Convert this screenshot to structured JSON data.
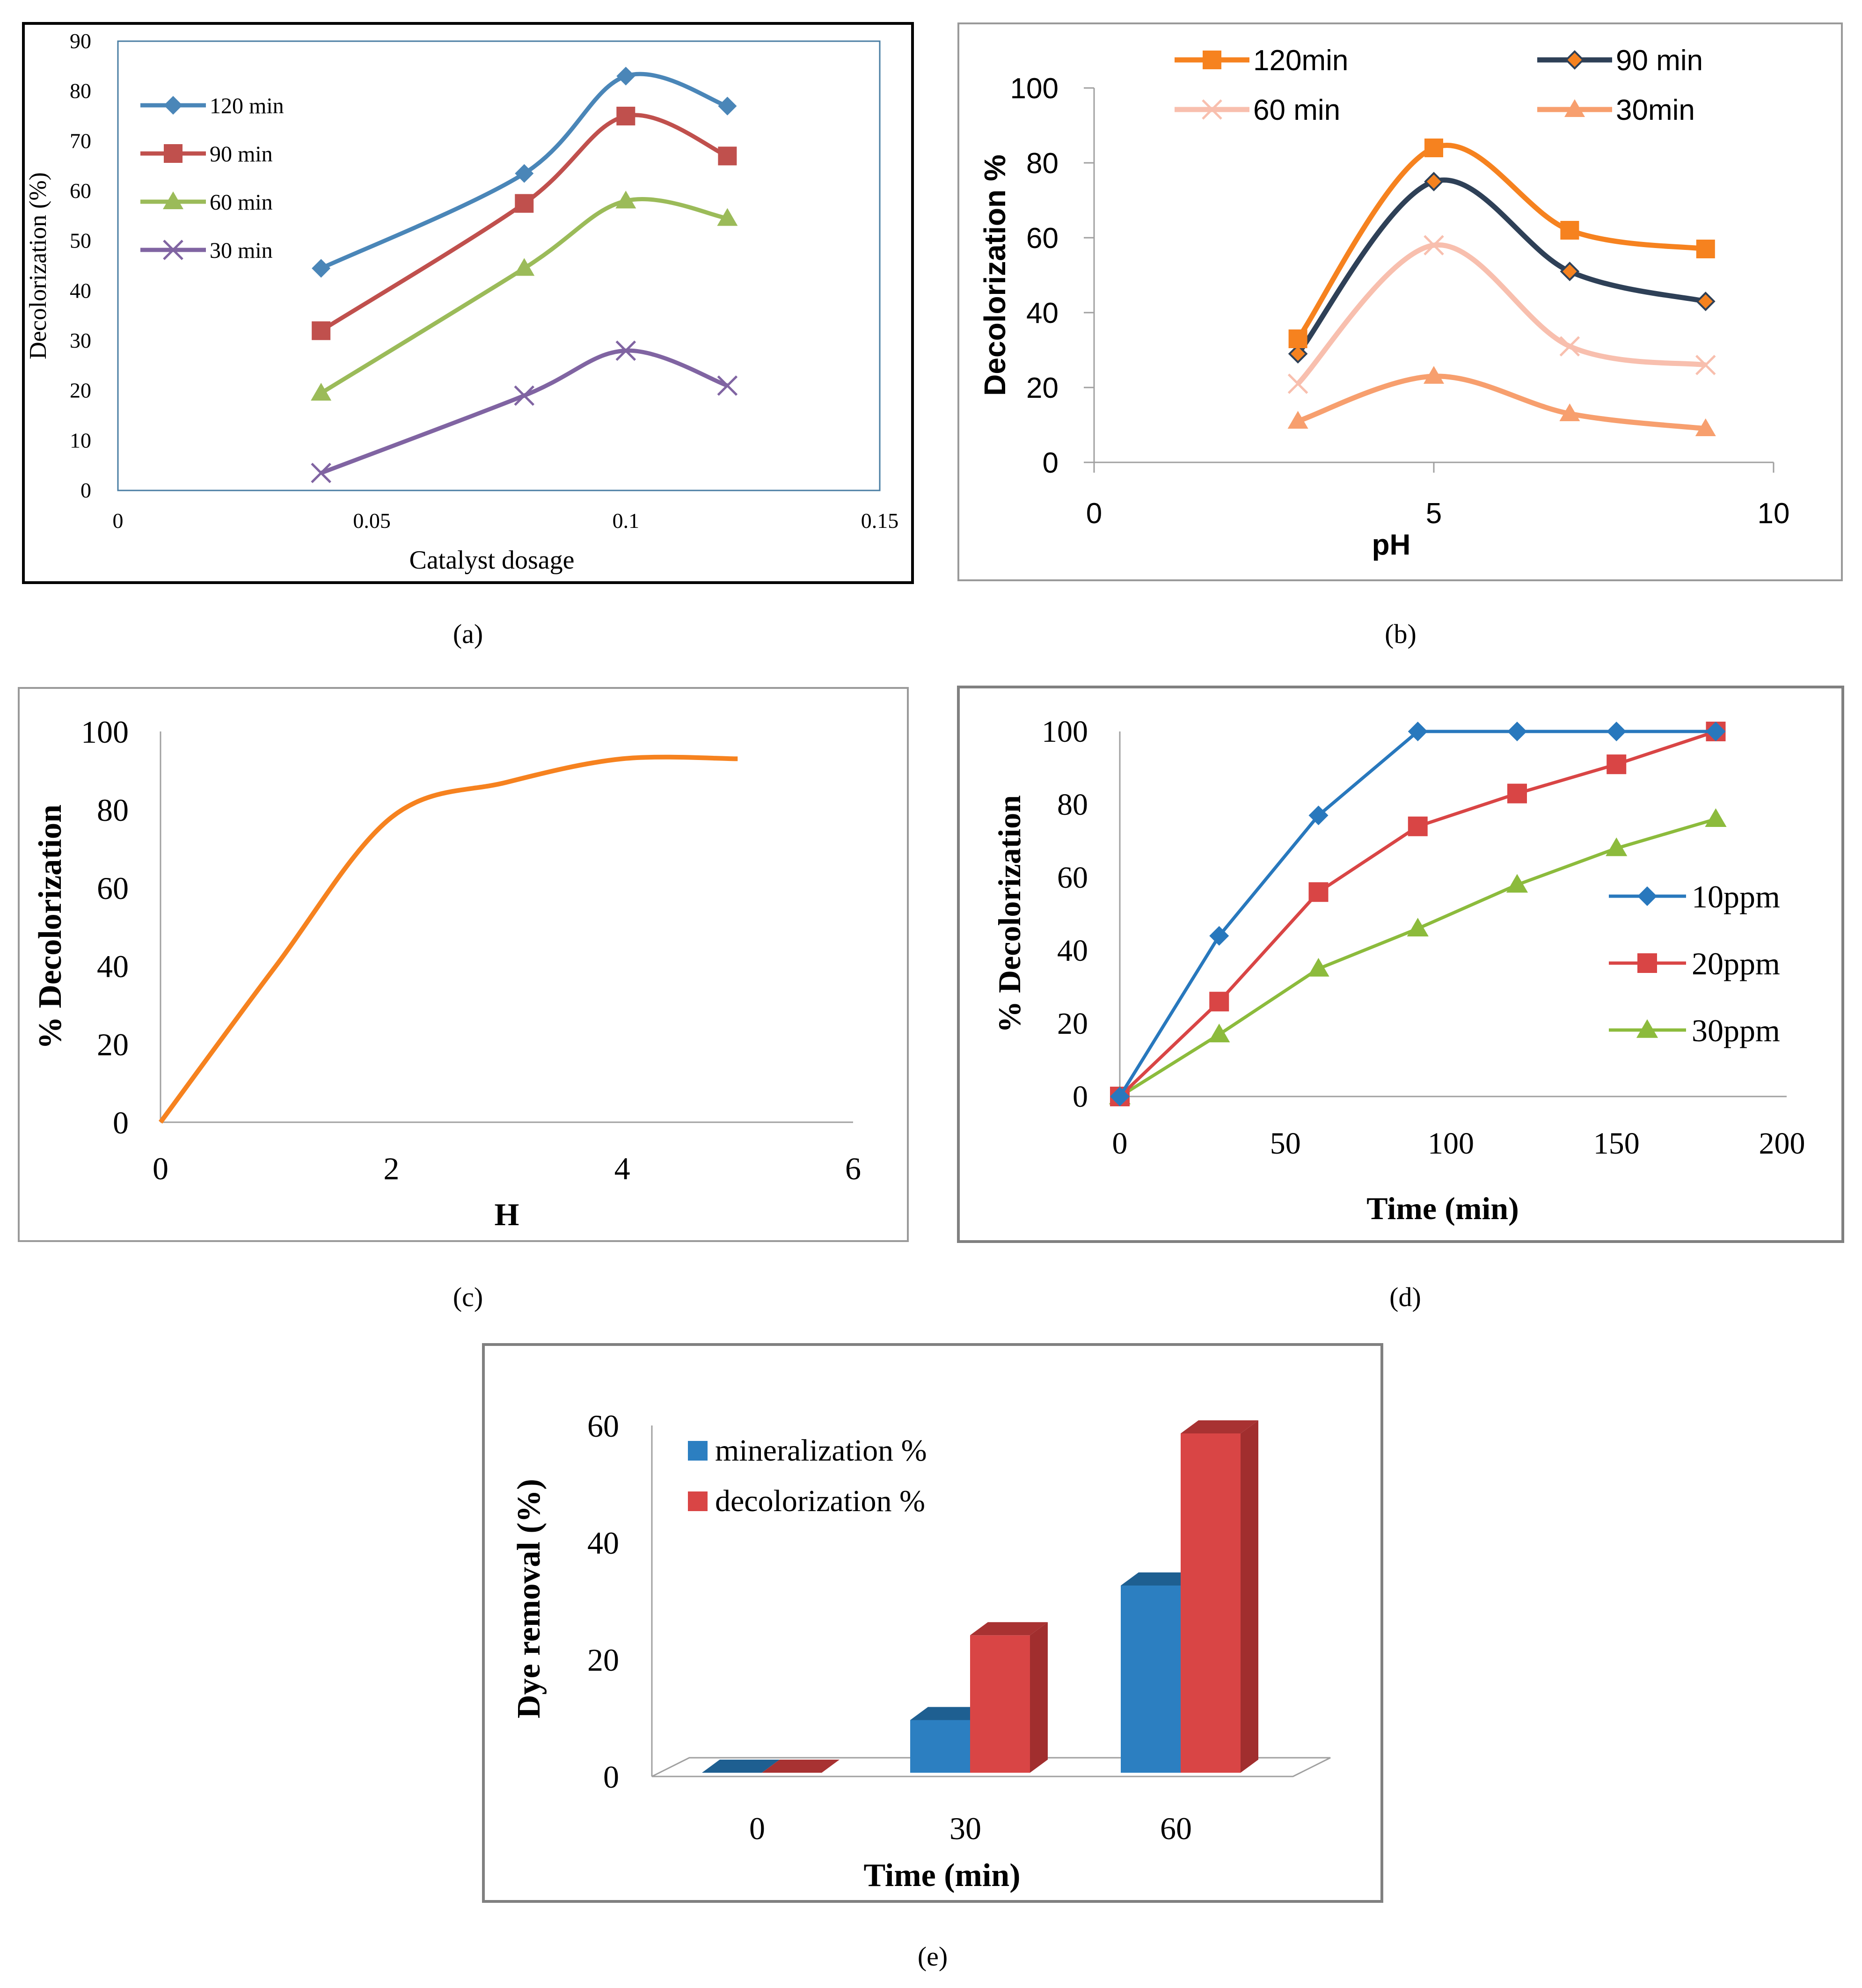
{
  "figure": {
    "captions": [
      "(a)",
      "(b)",
      "(c)",
      "(d)",
      "(e)"
    ]
  },
  "chart_data": [
    {
      "id": "a",
      "type": "line",
      "xlabel": "Catalyst dosage",
      "ylabel": "Decolorization   (%)",
      "xlim": [
        0,
        0.15
      ],
      "ylim": [
        0,
        90
      ],
      "xticks": [
        "0",
        "0.05",
        "0.1",
        "0.15"
      ],
      "yticks": [
        "0",
        "10",
        "20",
        "30",
        "40",
        "50",
        "60",
        "70",
        "80",
        "90"
      ],
      "legend_position": "top-left",
      "x": [
        0.04,
        0.08,
        0.1,
        0.12
      ],
      "series": [
        {
          "name": "120 min",
          "values": [
            44.5,
            63.5,
            83,
            77
          ],
          "color": "#4A86B8",
          "marker": "diamond"
        },
        {
          "name": "90 min",
          "values": [
            32,
            57.5,
            75,
            67
          ],
          "color": "#C0504D",
          "marker": "square"
        },
        {
          "name": "60 min",
          "values": [
            19.5,
            44.5,
            58,
            54.5
          ],
          "color": "#9BBB59",
          "marker": "triangle"
        },
        {
          "name": "30 min",
          "values": [
            3.5,
            19,
            28,
            21
          ],
          "color": "#8064A2",
          "marker": "x"
        }
      ]
    },
    {
      "id": "b",
      "type": "line",
      "xlabel": "pH",
      "ylabel": "Decolorization %",
      "xlim": [
        0,
        10
      ],
      "ylim": [
        0,
        100
      ],
      "xticks": [
        "0",
        "5",
        "10"
      ],
      "yticks": [
        "0",
        "20",
        "40",
        "60",
        "80",
        "100"
      ],
      "legend_position": "top",
      "x": [
        3,
        5,
        7,
        9
      ],
      "series": [
        {
          "name": "120min",
          "values": [
            33,
            84,
            62,
            57
          ],
          "color": "#F6821F",
          "marker": "square"
        },
        {
          "name": "90 min",
          "values": [
            29,
            75,
            51,
            43
          ],
          "color": "#2E4057",
          "marker": "diamond"
        },
        {
          "name": "60 min",
          "values": [
            21,
            58,
            31,
            26
          ],
          "color": "#F8BFAE",
          "marker": "x"
        },
        {
          "name": "30min",
          "values": [
            11,
            23,
            13,
            9
          ],
          "color": "#F79F6E",
          "marker": "triangle"
        }
      ]
    },
    {
      "id": "c",
      "type": "line",
      "xlabel": "H",
      "ylabel": "% Decolorization",
      "xlim": [
        0,
        6
      ],
      "ylim": [
        0,
        100
      ],
      "xticks": [
        "0",
        "2",
        "4",
        "6"
      ],
      "yticks": [
        "0",
        "20",
        "40",
        "60",
        "80",
        "100"
      ],
      "x": [
        0,
        1,
        2,
        3,
        4,
        5
      ],
      "series": [
        {
          "name": "H",
          "values": [
            0,
            40,
            78,
            87,
            93,
            93
          ],
          "color": "#F6821F",
          "marker": "none"
        }
      ]
    },
    {
      "id": "d",
      "type": "line",
      "xlabel": "Time (min)",
      "ylabel": "% Decolorization",
      "xlim": [
        0,
        200
      ],
      "ylim": [
        0,
        100
      ],
      "xticks": [
        "0",
        "50",
        "100",
        "150",
        "200"
      ],
      "yticks": [
        "0",
        "20",
        "40",
        "60",
        "80",
        "100"
      ],
      "legend_position": "right",
      "x": [
        0,
        30,
        60,
        90,
        120,
        150,
        180
      ],
      "series": [
        {
          "name": "10ppm",
          "values": [
            0,
            44,
            77,
            100,
            100,
            100,
            100
          ],
          "color": "#2878BD",
          "marker": "diamond"
        },
        {
          "name": "20ppm",
          "values": [
            0,
            26,
            56,
            74,
            83,
            91,
            100
          ],
          "color": "#D94545",
          "marker": "square"
        },
        {
          "name": "30ppm",
          "values": [
            0,
            17,
            35,
            46,
            58,
            68,
            76
          ],
          "color": "#8CBB3C",
          "marker": "triangle"
        }
      ]
    },
    {
      "id": "e",
      "type": "bar",
      "xlabel": "Time (min)",
      "ylabel": "Dye removal (%)",
      "ylim": [
        0,
        60
      ],
      "yticks": [
        "0",
        "20",
        "40",
        "60"
      ],
      "categories": [
        "0",
        "30",
        "60"
      ],
      "legend_position": "top-left",
      "series": [
        {
          "name": "mineralization %",
          "values": [
            0,
            9,
            32
          ],
          "color": "#2C7FC1"
        },
        {
          "name": "decolorization %",
          "values": [
            0,
            23.5,
            58
          ],
          "color": "#D94545"
        }
      ]
    }
  ]
}
